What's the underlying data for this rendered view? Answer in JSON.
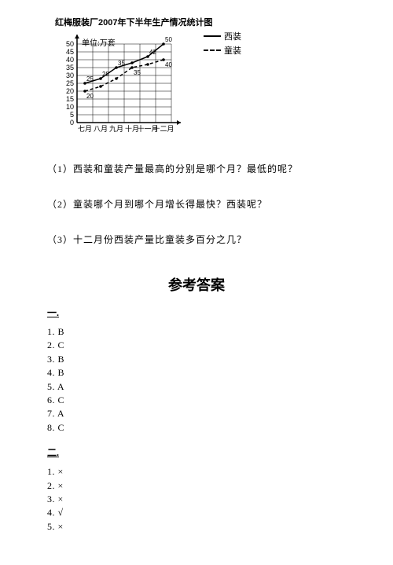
{
  "chart": {
    "type": "line",
    "title": "红梅服装厂2007年下半年生产情况统计图",
    "unit_label": "单位:万套",
    "x_categories": [
      "七月",
      "八月",
      "九月",
      "十月",
      "十一月",
      "十二月"
    ],
    "y_min": 0,
    "y_max": 50,
    "y_tick_step": 5,
    "grid_color": "#000000",
    "background_color": "#ffffff",
    "line_width": 1.5,
    "series": [
      {
        "name": "西装",
        "label": "西装",
        "style": "solid",
        "values": [
          25,
          28,
          35,
          38,
          42,
          50
        ]
      },
      {
        "name": "童装",
        "label": "童装",
        "style": "dashed",
        "values": [
          20,
          23,
          28,
          35,
          37,
          40
        ]
      }
    ],
    "point_labels_solid": [
      "25",
      "28",
      "35",
      "",
      "42",
      "50"
    ],
    "point_labels_dashed": [
      "20",
      "",
      "",
      "35",
      "",
      "40"
    ]
  },
  "questions": {
    "q1": "（1）西装和童装产量最高的分别是哪个月？最低的呢？",
    "q2": "（2）童装哪个月到哪个月增长得最快？西装呢？",
    "q3": "（3）十二月份西装产量比童装多百分之几？"
  },
  "answers": {
    "title": "参考答案",
    "section1_label": "一.",
    "section1": [
      "1. B",
      "2. C",
      "3. B",
      "4. B",
      "5. A",
      "6. C",
      "7. A",
      "8. C"
    ],
    "section2_label": "二.",
    "section2": [
      "1. ×",
      "2. ×",
      "3. ×",
      "4. √",
      "5. ×"
    ]
  }
}
